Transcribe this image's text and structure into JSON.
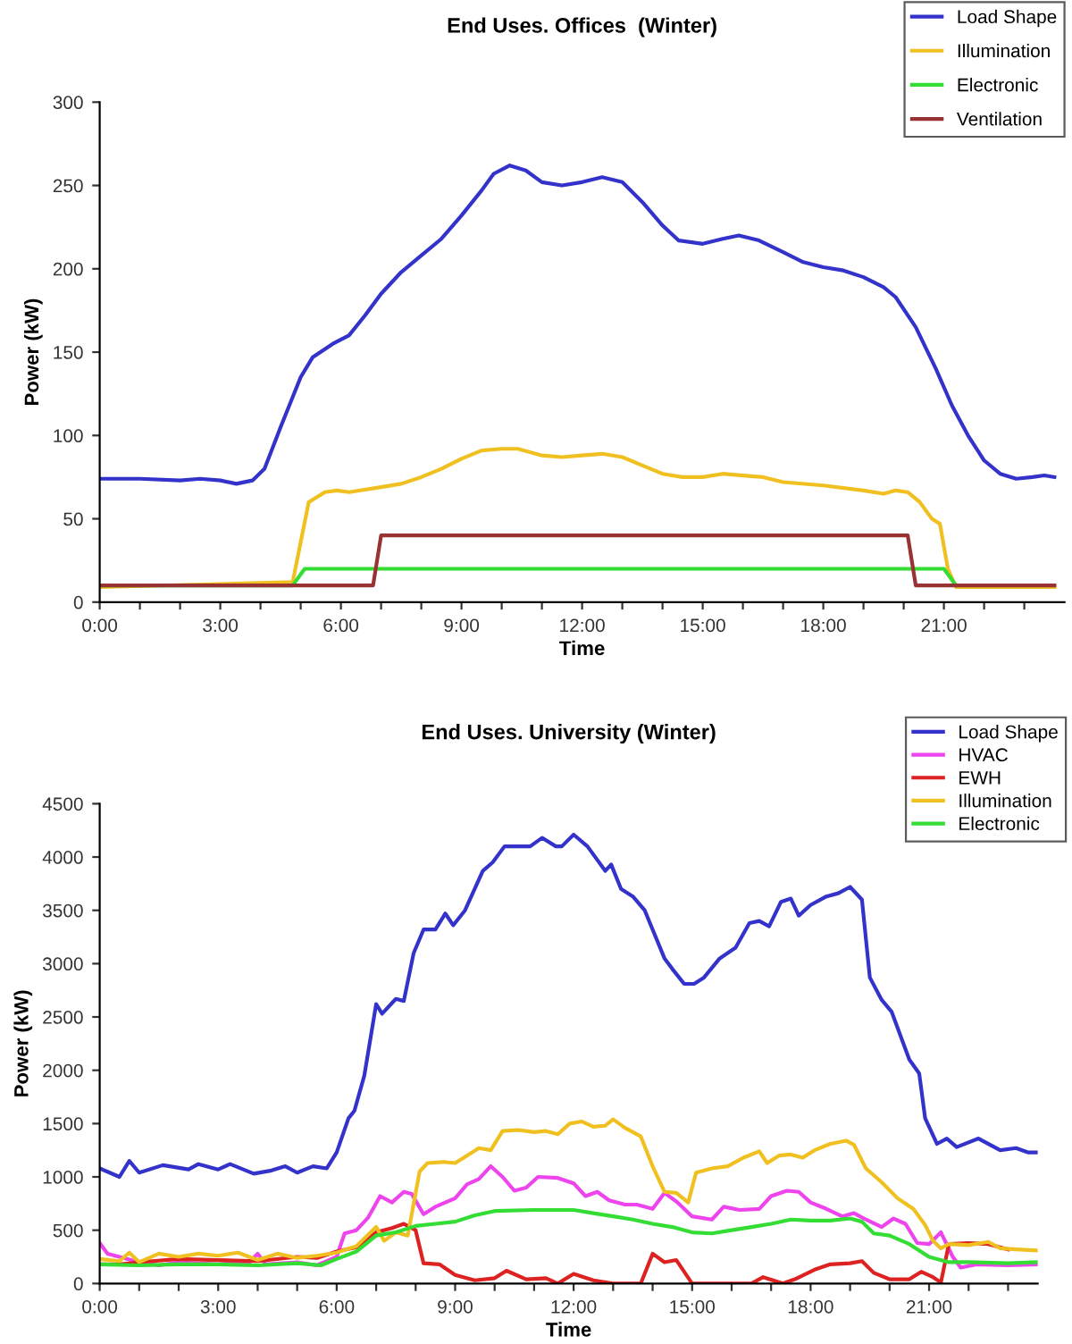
{
  "chart_data": [
    {
      "type": "line",
      "title": "End Uses. Offices  (Winter)",
      "xlabel": "Time",
      "ylabel": "Power (kW)",
      "xlim": [
        0,
        24
      ],
      "ylim": [
        0,
        300
      ],
      "yticks": [
        0,
        50,
        100,
        150,
        200,
        250,
        300
      ],
      "xticks": [
        {
          "value": 0,
          "label": "0:00"
        },
        {
          "value": 1,
          "label": null
        },
        {
          "value": 2,
          "label": null
        },
        {
          "value": 3,
          "label": "3:00"
        },
        {
          "value": 4,
          "label": null
        },
        {
          "value": 5,
          "label": null
        },
        {
          "value": 6,
          "label": "6:00"
        },
        {
          "value": 7,
          "label": null
        },
        {
          "value": 8,
          "label": null
        },
        {
          "value": 9,
          "label": "9:00"
        },
        {
          "value": 10,
          "label": null
        },
        {
          "value": 11,
          "label": null
        },
        {
          "value": 12,
          "label": "12:00"
        },
        {
          "value": 13,
          "label": null
        },
        {
          "value": 14,
          "label": null
        },
        {
          "value": 15,
          "label": "15:00"
        },
        {
          "value": 16,
          "label": null
        },
        {
          "value": 17,
          "label": null
        },
        {
          "value": 18,
          "label": "18:00"
        },
        {
          "value": 19,
          "label": null
        },
        {
          "value": 20,
          "label": null
        },
        {
          "value": 21,
          "label": "21:00"
        },
        {
          "value": 22,
          "label": null
        },
        {
          "value": 23,
          "label": null
        }
      ],
      "grid": false,
      "legend": "top right",
      "marker": "none",
      "line_style": "solid",
      "series": [
        {
          "name": "Load Shape",
          "color": "#3333cc",
          "x": [
            0,
            1,
            2,
            2.5,
            3,
            3.4,
            3.8,
            4.1,
            4.5,
            5,
            5.3,
            5.8,
            6.2,
            6.6,
            7,
            7.5,
            8,
            8.5,
            9,
            9.5,
            9.8,
            10.2,
            10.6,
            11,
            11.5,
            12,
            12.5,
            13,
            13.5,
            14,
            14.4,
            15,
            15.5,
            15.9,
            16.4,
            17,
            17.5,
            18,
            18.5,
            19,
            19.5,
            19.8,
            20.3,
            20.8,
            21.2,
            21.6,
            22,
            22.4,
            22.8,
            23.2,
            23.5,
            23.75
          ],
          "values": [
            74,
            74,
            73,
            74,
            73,
            71,
            73,
            80,
            105,
            135,
            147,
            155,
            160,
            172,
            185,
            198,
            208,
            218,
            232,
            247,
            257,
            262,
            259,
            252,
            250,
            252,
            255,
            252,
            240,
            226,
            217,
            215,
            218,
            220,
            217,
            210,
            204,
            201,
            199,
            195,
            189,
            183,
            165,
            140,
            118,
            100,
            85,
            77,
            74,
            75,
            76,
            75
          ]
        },
        {
          "name": "Illumination",
          "color": "#f0c020",
          "x": [
            0,
            4.8,
            5.2,
            5.6,
            5.9,
            6.2,
            7,
            7.5,
            8,
            8.5,
            9,
            9.5,
            10,
            10.4,
            11,
            11.5,
            12,
            12.5,
            13,
            13.5,
            14,
            14.5,
            15,
            15.5,
            16,
            16.5,
            17,
            18,
            19,
            19.5,
            19.8,
            20.1,
            20.4,
            20.7,
            20.9,
            21.1,
            21.3,
            23.75
          ],
          "values": [
            9,
            12,
            60,
            66,
            67,
            66,
            69,
            71,
            75,
            80,
            86,
            91,
            92,
            92,
            88,
            87,
            88,
            89,
            87,
            82,
            77,
            75,
            75,
            77,
            76,
            75,
            72,
            70,
            67,
            65,
            67,
            66,
            60,
            50,
            47,
            20,
            9,
            9
          ]
        },
        {
          "name": "Electronic",
          "color": "#33dd33",
          "x": [
            0,
            4.8,
            5.1,
            21.0,
            21.3
          ],
          "values": [
            10,
            10,
            20,
            20,
            10
          ]
        },
        {
          "name": "Ventilation",
          "color": "#993333",
          "x": [
            0,
            6.8,
            7.0,
            20.1,
            20.3,
            23.75
          ],
          "values": [
            10,
            10,
            40,
            40,
            10,
            10
          ]
        }
      ]
    },
    {
      "type": "line",
      "title": "End Uses. University (Winter)",
      "xlabel": "Time",
      "ylabel": "Power (kW)",
      "xlim": [
        0,
        23.75
      ],
      "ylim": [
        0,
        4500
      ],
      "yticks": [
        0,
        500,
        1000,
        1500,
        2000,
        2500,
        3000,
        3500,
        4000,
        4500
      ],
      "xticks": [
        {
          "value": 0,
          "label": "0:00"
        },
        {
          "value": 1,
          "label": null
        },
        {
          "value": 2,
          "label": null
        },
        {
          "value": 3,
          "label": "3:00"
        },
        {
          "value": 4,
          "label": null
        },
        {
          "value": 5,
          "label": null
        },
        {
          "value": 6,
          "label": "6:00"
        },
        {
          "value": 7,
          "label": null
        },
        {
          "value": 8,
          "label": null
        },
        {
          "value": 9,
          "label": "9:00"
        },
        {
          "value": 10,
          "label": null
        },
        {
          "value": 11,
          "label": null
        },
        {
          "value": 12,
          "label": "12:00"
        },
        {
          "value": 13,
          "label": null
        },
        {
          "value": 14,
          "label": null
        },
        {
          "value": 15,
          "label": "15:00"
        },
        {
          "value": 16,
          "label": null
        },
        {
          "value": 17,
          "label": null
        },
        {
          "value": 18,
          "label": "18:00"
        },
        {
          "value": 19,
          "label": null
        },
        {
          "value": 20,
          "label": null
        },
        {
          "value": 21,
          "label": "21:00"
        },
        {
          "value": 22,
          "label": null
        },
        {
          "value": 23,
          "label": null
        }
      ],
      "grid": false,
      "legend": "top right",
      "marker": "none",
      "line_style": "solid",
      "series": [
        {
          "name": "Load Shape",
          "color": "#3333cc",
          "x": [
            0,
            0.5,
            0.75,
            1.0,
            1.6,
            2.25,
            2.5,
            3.0,
            3.3,
            3.9,
            4.35,
            4.7,
            5.0,
            5.4,
            5.75,
            6.0,
            6.3,
            6.45,
            6.7,
            7.0,
            7.15,
            7.5,
            7.7,
            7.95,
            8.2,
            8.5,
            8.75,
            8.95,
            9.25,
            9.7,
            9.95,
            10.25,
            10.9,
            11.2,
            11.55,
            11.7,
            12.0,
            12.35,
            12.8,
            12.95,
            13.2,
            13.5,
            13.8,
            14.3,
            14.5,
            14.8,
            15.05,
            15.3,
            15.7,
            16.1,
            16.45,
            16.7,
            16.95,
            17.25,
            17.5,
            17.7,
            18.0,
            18.4,
            18.7,
            19.0,
            19.3,
            19.5,
            19.8,
            20.05,
            20.5,
            20.75,
            20.9,
            21.2,
            21.45,
            21.7,
            22.25,
            22.8,
            23.2,
            23.5,
            23.75
          ],
          "values": [
            1080,
            1000,
            1150,
            1040,
            1110,
            1070,
            1120,
            1070,
            1120,
            1030,
            1060,
            1100,
            1040,
            1100,
            1080,
            1230,
            1550,
            1620,
            1950,
            2620,
            2530,
            2670,
            2650,
            3100,
            3320,
            3320,
            3470,
            3360,
            3500,
            3870,
            3950,
            4100,
            4100,
            4180,
            4100,
            4100,
            4210,
            4100,
            3870,
            3930,
            3700,
            3630,
            3500,
            3050,
            2950,
            2810,
            2810,
            2870,
            3050,
            3150,
            3380,
            3400,
            3350,
            3580,
            3610,
            3450,
            3550,
            3630,
            3660,
            3720,
            3600,
            2870,
            2660,
            2550,
            2100,
            1970,
            1550,
            1310,
            1360,
            1280,
            1360,
            1250,
            1270,
            1230,
            1230
          ]
        },
        {
          "name": "HVAC",
          "color": "#ee44ee",
          "x": [
            0,
            0.2,
            0.5,
            1,
            1.5,
            2,
            3,
            3.5,
            3.8,
            4,
            4.2,
            5,
            5.5,
            6,
            6.2,
            6.5,
            6.8,
            7.1,
            7.4,
            7.7,
            7.9,
            8.2,
            8.5,
            9,
            9.3,
            9.6,
            9.9,
            10.2,
            10.5,
            10.8,
            11.1,
            11.6,
            12.0,
            12.3,
            12.6,
            12.9,
            13.3,
            13.6,
            14.0,
            14.3,
            14.6,
            15.0,
            15.5,
            15.8,
            16.2,
            16.7,
            17.0,
            17.4,
            17.7,
            18.0,
            18.4,
            18.8,
            19.1,
            19.4,
            19.8,
            20.1,
            20.4,
            20.7,
            21.0,
            21.3,
            21.6,
            21.8,
            22.2,
            23,
            23.75
          ],
          "values": [
            380,
            280,
            250,
            200,
            170,
            200,
            180,
            200,
            200,
            280,
            180,
            200,
            170,
            250,
            470,
            500,
            620,
            820,
            760,
            860,
            840,
            650,
            720,
            800,
            930,
            980,
            1100,
            1000,
            870,
            900,
            1000,
            990,
            940,
            820,
            860,
            780,
            740,
            740,
            700,
            850,
            770,
            630,
            600,
            720,
            690,
            700,
            820,
            870,
            860,
            760,
            700,
            630,
            660,
            600,
            530,
            610,
            560,
            380,
            370,
            480,
            250,
            150,
            180,
            170,
            180
          ]
        },
        {
          "name": "EWH",
          "color": "#dd2222",
          "x": [
            0,
            0.5,
            1,
            2,
            3,
            4,
            5,
            5.5,
            6,
            6.5,
            7,
            7.4,
            7.7,
            8.0,
            8.2,
            8.6,
            9.0,
            9.5,
            10.0,
            10.3,
            10.8,
            11.3,
            11.6,
            12.0,
            12.5,
            13.0,
            13.7,
            14.0,
            14.3,
            14.6,
            15.0,
            16.0,
            16.5,
            16.8,
            17.3,
            17.6,
            18.1,
            18.5,
            19.0,
            19.3,
            19.6,
            20.0,
            20.5,
            20.8,
            21.1,
            21.3,
            21.5,
            22.0,
            22.5,
            23.0
          ],
          "values": [
            180,
            180,
            200,
            230,
            220,
            210,
            250,
            240,
            300,
            340,
            480,
            520,
            560,
            500,
            190,
            180,
            80,
            30,
            50,
            120,
            40,
            50,
            0,
            90,
            30,
            0,
            0,
            280,
            200,
            220,
            0,
            0,
            0,
            60,
            0,
            40,
            130,
            180,
            190,
            210,
            100,
            40,
            40,
            110,
            60,
            10,
            370,
            380,
            370,
            320
          ]
        },
        {
          "name": "Illumination",
          "color": "#f0c020",
          "x": [
            0,
            0.5,
            0.75,
            1,
            1.5,
            2,
            2.5,
            3,
            3.5,
            4,
            4.5,
            5,
            5.5,
            6,
            6.5,
            7,
            7.2,
            7.5,
            7.8,
            8.1,
            8.3,
            8.7,
            9,
            9.3,
            9.6,
            9.9,
            10.2,
            10.6,
            11,
            11.3,
            11.6,
            11.9,
            12.2,
            12.5,
            12.8,
            13.0,
            13.3,
            13.7,
            14.0,
            14.3,
            14.6,
            14.9,
            15.1,
            15.5,
            15.9,
            16.3,
            16.7,
            16.9,
            17.2,
            17.5,
            17.8,
            18.1,
            18.5,
            18.9,
            19.1,
            19.4,
            19.8,
            20.2,
            20.6,
            20.9,
            21.1,
            21.3,
            21.5,
            22,
            22.5,
            22.8,
            23.2,
            23.75
          ],
          "values": [
            230,
            210,
            290,
            200,
            280,
            250,
            280,
            260,
            290,
            220,
            280,
            240,
            260,
            290,
            350,
            530,
            400,
            480,
            450,
            1050,
            1130,
            1140,
            1130,
            1200,
            1270,
            1250,
            1430,
            1440,
            1420,
            1430,
            1400,
            1500,
            1520,
            1470,
            1480,
            1540,
            1460,
            1380,
            1100,
            860,
            850,
            760,
            1040,
            1080,
            1100,
            1180,
            1240,
            1130,
            1200,
            1210,
            1180,
            1250,
            1310,
            1340,
            1300,
            1080,
            950,
            800,
            700,
            550,
            400,
            330,
            370,
            360,
            390,
            330,
            320,
            310
          ]
        },
        {
          "name": "Electronic",
          "color": "#33dd33",
          "x": [
            0,
            1,
            2,
            3,
            4,
            5,
            5.6,
            6,
            6.5,
            7,
            7.5,
            8,
            8.5,
            9,
            9.5,
            10,
            11,
            12,
            12.5,
            13,
            13.5,
            14,
            14.5,
            15,
            15.5,
            16,
            16.5,
            17,
            17.5,
            18,
            18.5,
            19,
            19.3,
            19.6,
            20,
            20.5,
            21,
            21.5,
            22,
            23,
            23.75
          ],
          "values": [
            180,
            170,
            180,
            180,
            170,
            190,
            170,
            230,
            300,
            450,
            480,
            540,
            560,
            580,
            640,
            680,
            690,
            690,
            660,
            630,
            600,
            560,
            530,
            480,
            470,
            500,
            530,
            560,
            600,
            590,
            590,
            610,
            580,
            470,
            450,
            370,
            250,
            200,
            200,
            190,
            200
          ]
        }
      ]
    }
  ]
}
